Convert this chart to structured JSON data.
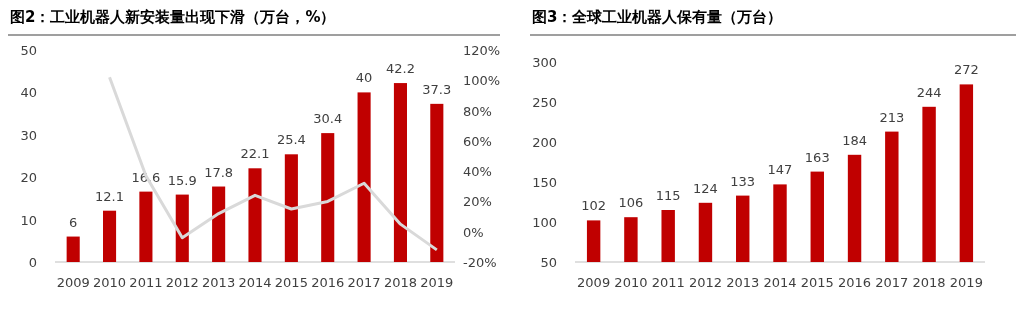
{
  "chart_data": [
    {
      "type": "bar",
      "title": "图2：工业机器人新安装量出现下滑（万台，%）",
      "categories": [
        "2009",
        "2010",
        "2011",
        "2012",
        "2013",
        "2014",
        "2015",
        "2016",
        "2017",
        "2018",
        "2019"
      ],
      "series": [
        {
          "color": "#c00000",
          "values": [
            6,
            12.1,
            16.6,
            15.9,
            17.8,
            22.1,
            25.4,
            30.4,
            40,
            42.2,
            37.3
          ],
          "data_labels": true
        },
        {
          "type": "line",
          "axis": "y2",
          "color": "#d9d9d9",
          "values": [
            null,
            102,
            37,
            -4,
            12,
            24,
            15,
            20,
            32,
            5,
            -12
          ]
        }
      ],
      "ylim": [
        0,
        50
      ],
      "yticks": [
        0,
        10,
        20,
        30,
        40,
        50
      ],
      "y2lim": [
        -20,
        120
      ],
      "y2ticks": [
        {
          "value": -20,
          "label": "-20%"
        },
        {
          "value": 0,
          "label": "0%"
        },
        {
          "value": 20,
          "label": "20%"
        },
        {
          "value": 40,
          "label": "40%"
        },
        {
          "value": 60,
          "label": "60%"
        },
        {
          "value": 80,
          "label": "80%"
        },
        {
          "value": 100,
          "label": "100%"
        },
        {
          "value": 120,
          "label": "120%"
        }
      ],
      "grid": false,
      "marker": "none",
      "line_style": "solid"
    },
    {
      "type": "bar",
      "title": "图3：全球工业机器人保有量（万台）",
      "categories": [
        "2009",
        "2010",
        "2011",
        "2012",
        "2013",
        "2014",
        "2015",
        "2016",
        "2017",
        "2018",
        "2019"
      ],
      "series": [
        {
          "color": "#c00000",
          "values": [
            102,
            106,
            115,
            124,
            133,
            147,
            163,
            184,
            213,
            244,
            272
          ],
          "data_labels": true
        }
      ],
      "ylim": [
        50,
        300
      ],
      "yticks": [
        50,
        100,
        150,
        200,
        250,
        300
      ],
      "grid": false
    }
  ]
}
